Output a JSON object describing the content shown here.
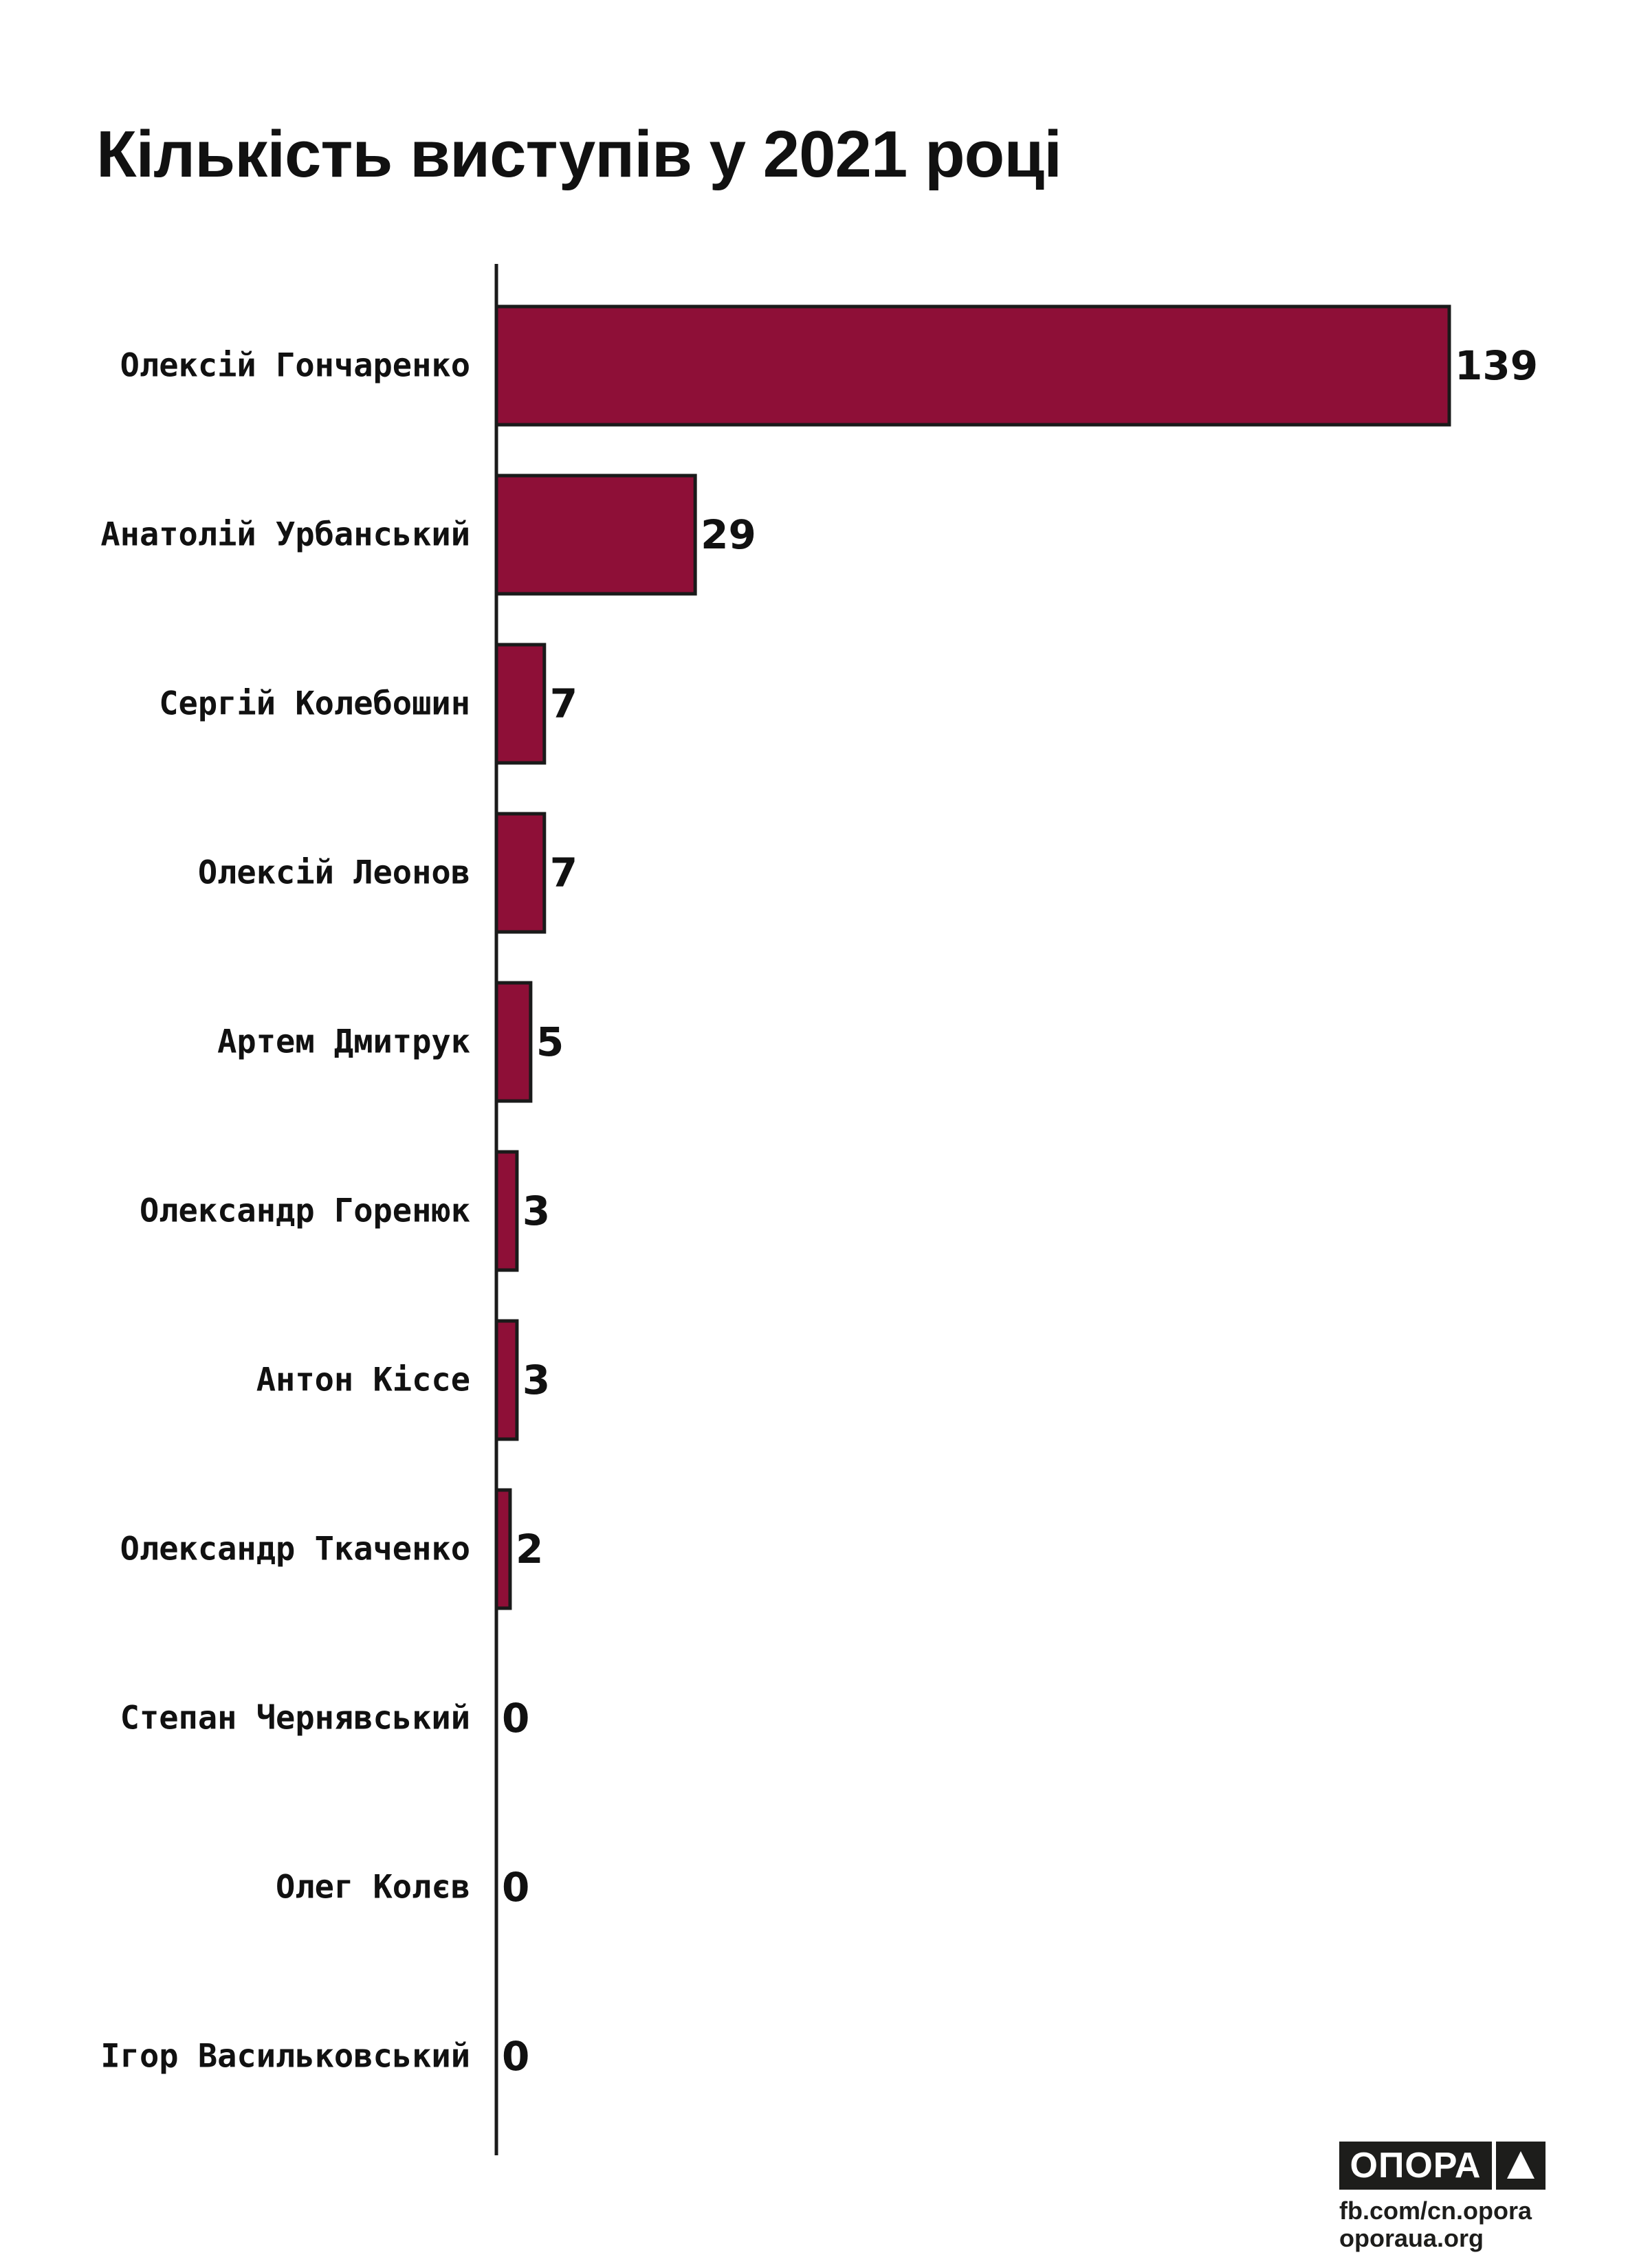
{
  "chart_data": {
    "type": "bar",
    "orientation": "horizontal",
    "title": "Кількість виступів у 2021 році",
    "categories": [
      "Олексій Гончаренко",
      "Анатолій Урбанський",
      "Сергій Колебошин",
      "Олексій Леонов",
      "Артем Дмитрук",
      "Олександр Горенюк",
      "Антон Кіссе",
      "Олександр Ткаченко",
      "Степан Чернявський",
      "Олег Колєв",
      "Ігор Васильковський"
    ],
    "values": [
      139,
      29,
      7,
      7,
      5,
      3,
      3,
      2,
      0,
      0,
      0
    ],
    "xlim": [
      0,
      139
    ],
    "grid": false,
    "legend": "none",
    "colors": {
      "bar": "#8e0f37",
      "bar_edge": "#1a1a1a",
      "axis": "#1a1a1a"
    }
  },
  "branding": {
    "logo_text": "ОПОРА",
    "logo_icon": "triangle-icon",
    "lines": [
      "fb.com/cn.opora",
      "oporaua.org"
    ]
  }
}
